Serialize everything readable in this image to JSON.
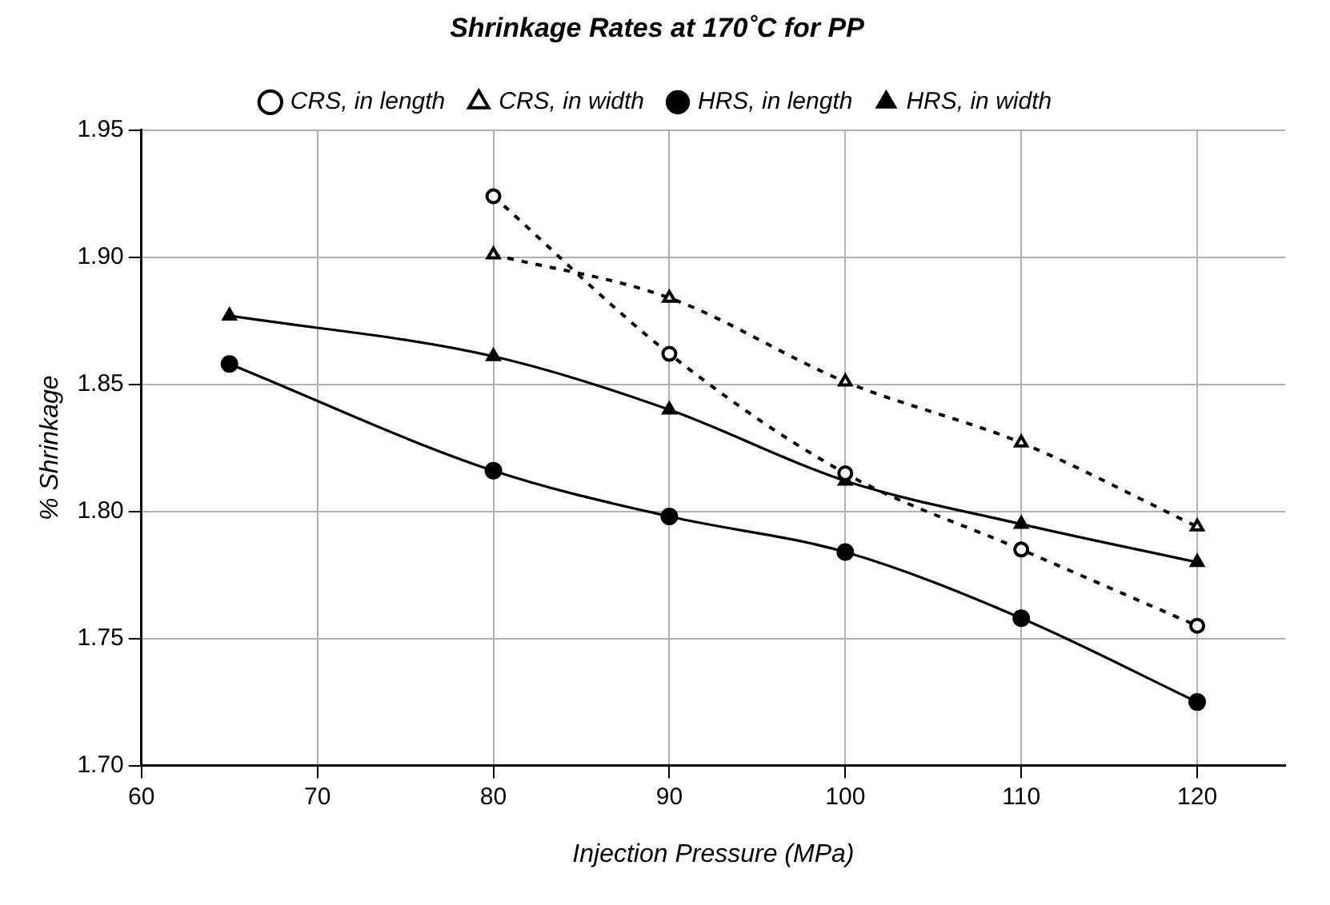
{
  "chart_data": {
    "type": "line",
    "title": "Shrinkage Rates at 170˚C for PP",
    "xlabel": "Injection Pressure (MPa)",
    "ylabel": "% Shrinkage",
    "xlim": [
      60,
      125
    ],
    "xticks": [
      60,
      70,
      80,
      90,
      100,
      110,
      120
    ],
    "ylim": [
      1.7,
      1.95
    ],
    "yticks": [
      {
        "value": 1.7,
        "label": "1.70"
      },
      1.75,
      {
        "value": 1.8,
        "label": "1.80"
      },
      1.85,
      {
        "value": 1.9,
        "label": "1.90"
      },
      1.95
    ],
    "grid": true,
    "legend": "top",
    "series": [
      {
        "name": "CRS, in length",
        "color": "#000000",
        "marker": "circle",
        "line_style": "dashed",
        "x": [
          80,
          90,
          100,
          110,
          120
        ],
        "values": [
          1.924,
          1.862,
          1.815,
          1.785,
          1.755
        ]
      },
      {
        "name": "CRS, in width",
        "color": "#000000",
        "marker": "triangle",
        "line_style": "dashed",
        "x": [
          80,
          90,
          100,
          110,
          120
        ],
        "values": [
          1.901,
          1.884,
          1.851,
          1.827,
          1.794
        ]
      },
      {
        "name": "HRS, in length",
        "color": "#000000",
        "marker": "circle",
        "line_style": "solid",
        "x": [
          65,
          80,
          90,
          100,
          110,
          120
        ],
        "values": [
          1.858,
          1.816,
          1.798,
          1.784,
          1.758,
          1.725
        ]
      },
      {
        "name": "HRS, in width",
        "color": "#000000",
        "marker": "triangle",
        "line_style": "solid",
        "x": [
          65,
          80,
          90,
          100,
          110,
          120
        ],
        "values": [
          1.877,
          1.861,
          1.84,
          1.812,
          1.795,
          1.78
        ]
      }
    ]
  }
}
